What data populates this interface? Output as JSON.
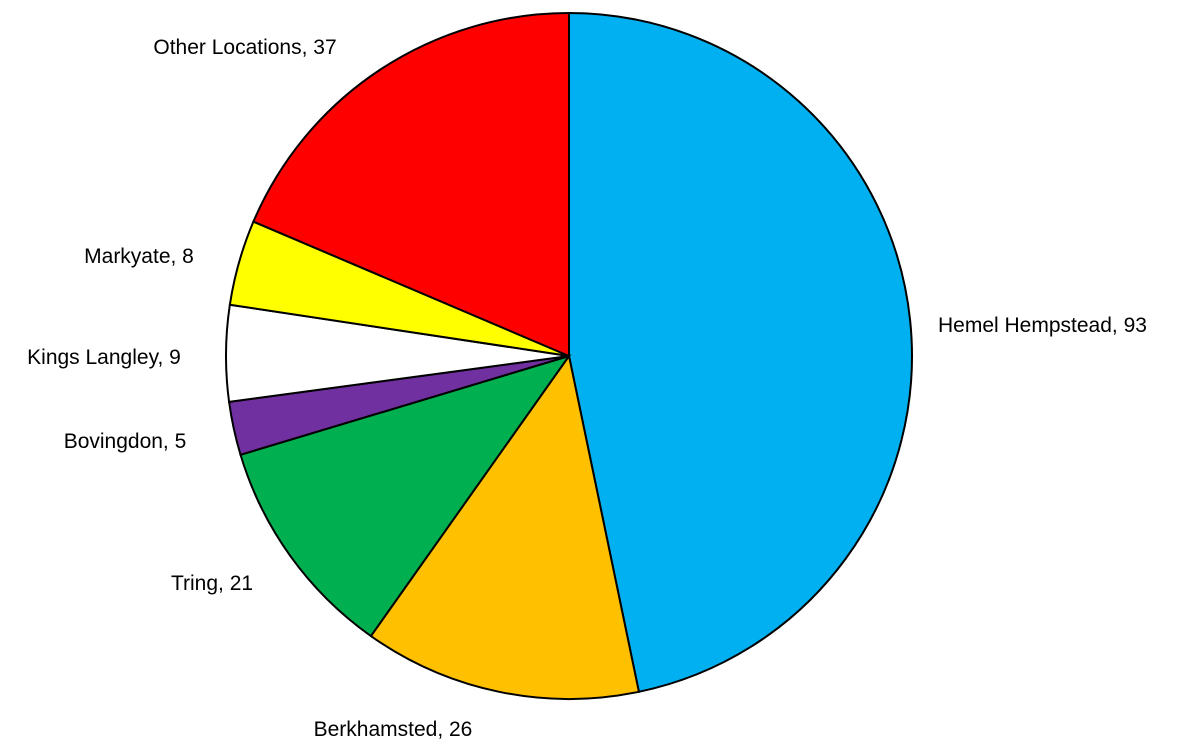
{
  "chart_data": {
    "type": "pie",
    "title": "",
    "start_angle_deg": 0,
    "direction": "clockwise",
    "slices": [
      {
        "label": "Hemel Hempstead",
        "value": 93,
        "color": "#00B0F0",
        "data_label": "Hemel Hempstead, 93"
      },
      {
        "label": "Berkhamsted",
        "value": 26,
        "color": "#FFC000",
        "data_label": "Berkhamsted, 26"
      },
      {
        "label": "Tring",
        "value": 21,
        "color": "#00B050",
        "data_label": "Tring, 21"
      },
      {
        "label": "Bovingdon",
        "value": 5,
        "color": "#7030A0",
        "data_label": "Bovingdon, 5"
      },
      {
        "label": "Kings Langley",
        "value": 9,
        "color": "#FFFFFF",
        "data_label": "Kings Langley, 9"
      },
      {
        "label": "Markyate",
        "value": 8,
        "color": "#FFFF00",
        "data_label": "Markyate, 8"
      },
      {
        "label": "Other Locations",
        "value": 37,
        "color": "#FF0000",
        "data_label": "Other Locations, 37"
      }
    ],
    "legend": "none",
    "outline_color": "#000000"
  }
}
